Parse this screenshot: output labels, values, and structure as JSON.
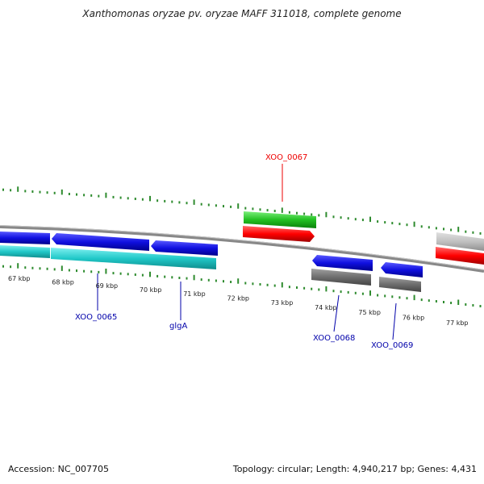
{
  "title": "Xanthomonas oryzae pv. oryzae MAFF 311018, complete genome",
  "footer": {
    "accession": "Accession: NC_007705",
    "summary": "Topology: circular; Length: 4,940,217 bp; Genes: 4,431"
  },
  "colors": {
    "tick": "#2e8b2e",
    "forward_cds": "#1010e0",
    "reverse_cds": "#20c8c8",
    "rna": "#10c010",
    "highlight_red": "#ff0000",
    "gene_label_blue": "#0000aa",
    "gene_label_red": "#ee0000",
    "backbone": "#888888",
    "grey": "#707070"
  },
  "scale_labels": [
    "67 kbp",
    "68 kbp",
    "69 kbp",
    "70 kbp",
    "71 kbp",
    "72 kbp",
    "73 kbp",
    "74 kbp",
    "75 kbp",
    "76 kbp",
    "77 kbp"
  ],
  "gene_labels": [
    {
      "id": "xoo0067",
      "text": "XOO_0067",
      "color": "red"
    },
    {
      "id": "xoo0065",
      "text": "XOO_0065",
      "color": "blue"
    },
    {
      "id": "glga",
      "text": "glgA",
      "color": "blue"
    },
    {
      "id": "xoo0068",
      "text": "XOO_0068",
      "color": "blue"
    },
    {
      "id": "xoo0069",
      "text": "XOO_0069",
      "color": "blue"
    }
  ]
}
